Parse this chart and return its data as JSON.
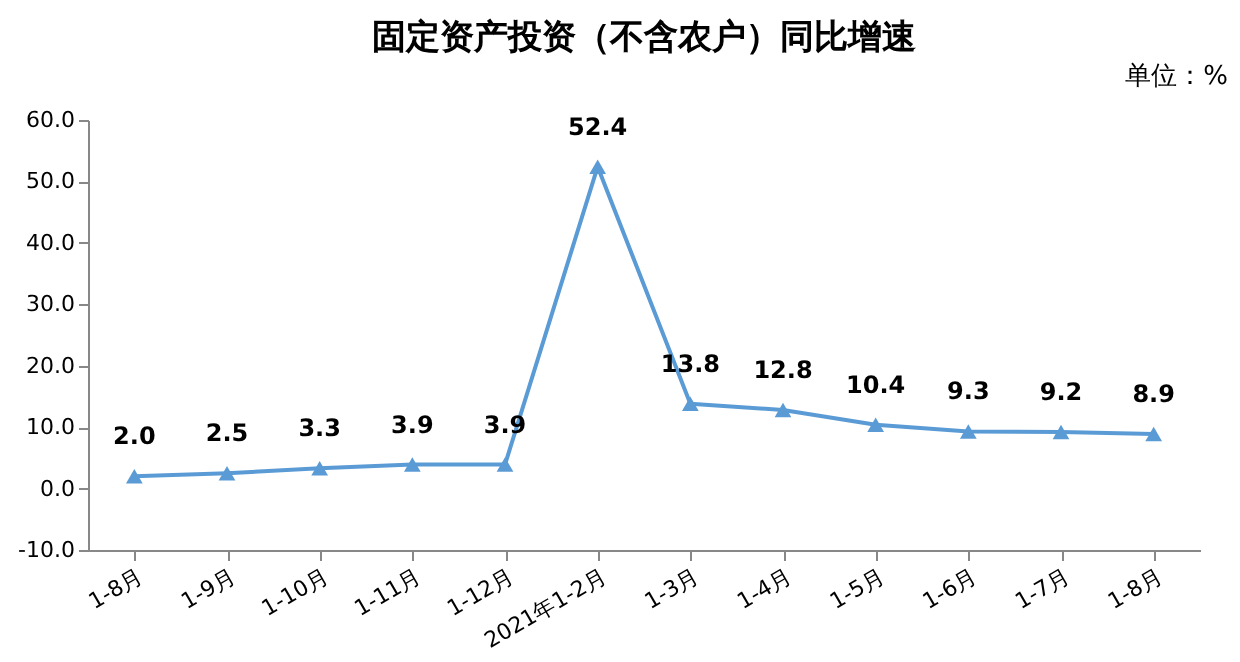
{
  "chart_data": {
    "type": "line",
    "title": "固定资产投资（不含农户）同比增速",
    "annotations": [
      "单位：%"
    ],
    "categories": [
      "1-8月",
      "1-9月",
      "1-10月",
      "1-11月",
      "1-12月",
      "2021年1-2月",
      "1-3月",
      "1-4月",
      "1-5月",
      "1-6月",
      "1-7月",
      "1-8月"
    ],
    "series": [
      {
        "color": "#5b9bd5",
        "values": [
          2.0,
          2.5,
          3.3,
          3.9,
          3.9,
          52.4,
          13.8,
          12.8,
          10.4,
          9.3,
          9.2,
          8.9
        ],
        "value_labels": [
          "2.0",
          "2.5",
          "3.3",
          "3.9",
          "3.9",
          "52.4",
          "13.8",
          "12.8",
          "10.4",
          "9.3",
          "9.2",
          "8.9"
        ]
      }
    ],
    "ylim": [
      -10,
      60
    ],
    "yticks": [
      {
        "value": -10,
        "label": "-10.0"
      },
      {
        "value": 0,
        "label": "0.0"
      },
      {
        "value": 10,
        "label": "10.0"
      },
      {
        "value": 20,
        "label": "20.0"
      },
      {
        "value": 30,
        "label": "30.0"
      },
      {
        "value": 40,
        "label": "40.0"
      },
      {
        "value": 50,
        "label": "50.0"
      },
      {
        "value": 60,
        "label": "60.0"
      }
    ],
    "marker": "triangle",
    "line_style": "solid",
    "grid": false
  }
}
